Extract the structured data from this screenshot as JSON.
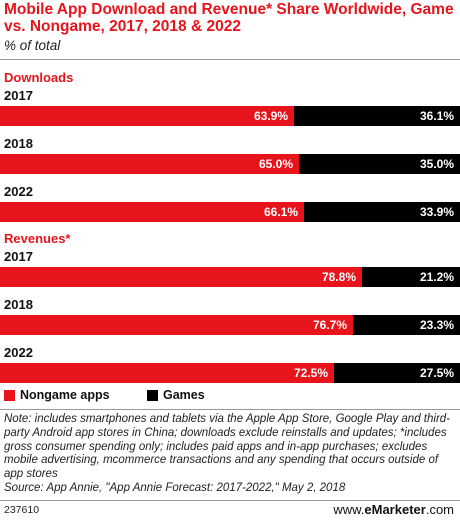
{
  "header": {
    "title": "Mobile App Download and Revenue* Share Worldwide, Game vs. Nongame, 2017, 2018 & 2022",
    "subtitle": "% of total"
  },
  "legend": {
    "nongame": "Nongame apps",
    "games": "Games"
  },
  "colors": {
    "nongame": "#e8141b",
    "games": "#000000",
    "accent": "#e8141b"
  },
  "chart_data": {
    "type": "bar",
    "stacked": true,
    "orientation": "horizontal",
    "title": "Mobile App Download and Revenue* Share Worldwide, Game vs. Nongame, 2017, 2018 & 2022",
    "subtitle": "% of total",
    "groups": [
      {
        "name": "Downloads",
        "categories": [
          "2017",
          "2018",
          "2022"
        ],
        "series": [
          {
            "name": "Nongame apps",
            "values": [
              63.9,
              65.0,
              66.1
            ],
            "labels": [
              "63.9%",
              "65.0%",
              "66.1%"
            ]
          },
          {
            "name": "Games",
            "values": [
              36.1,
              35.0,
              33.9
            ],
            "labels": [
              "36.1%",
              "35.0%",
              "33.9%"
            ]
          }
        ]
      },
      {
        "name": "Revenues*",
        "categories": [
          "2017",
          "2018",
          "2022"
        ],
        "series": [
          {
            "name": "Nongame apps",
            "values": [
              78.8,
              76.7,
              72.5
            ],
            "labels": [
              "78.8%",
              "76.7%",
              "72.5%"
            ]
          },
          {
            "name": "Games",
            "values": [
              21.2,
              23.3,
              27.5
            ],
            "labels": [
              "21.2%",
              "23.3%",
              "27.5%"
            ]
          }
        ]
      }
    ],
    "legend": "bottom"
  },
  "note": {
    "text": "Note: includes smartphones and tablets via the Apple App Store, Google Play and third-party Android app stores in China; downloads exclude reinstalls and updates; *includes gross consumer spending only; includes paid apps and in-app purchases; excludes mobile advertising, mcommerce transactions and any spending that occurs outside of app stores",
    "source": "Source: App Annie, \"App Annie Forecast: 2017-2022,\" May 2, 2018"
  },
  "footer": {
    "id": "237610",
    "brand_prefix": "www.",
    "brand_name": "eMarketer",
    "brand_suffix": ".com"
  }
}
